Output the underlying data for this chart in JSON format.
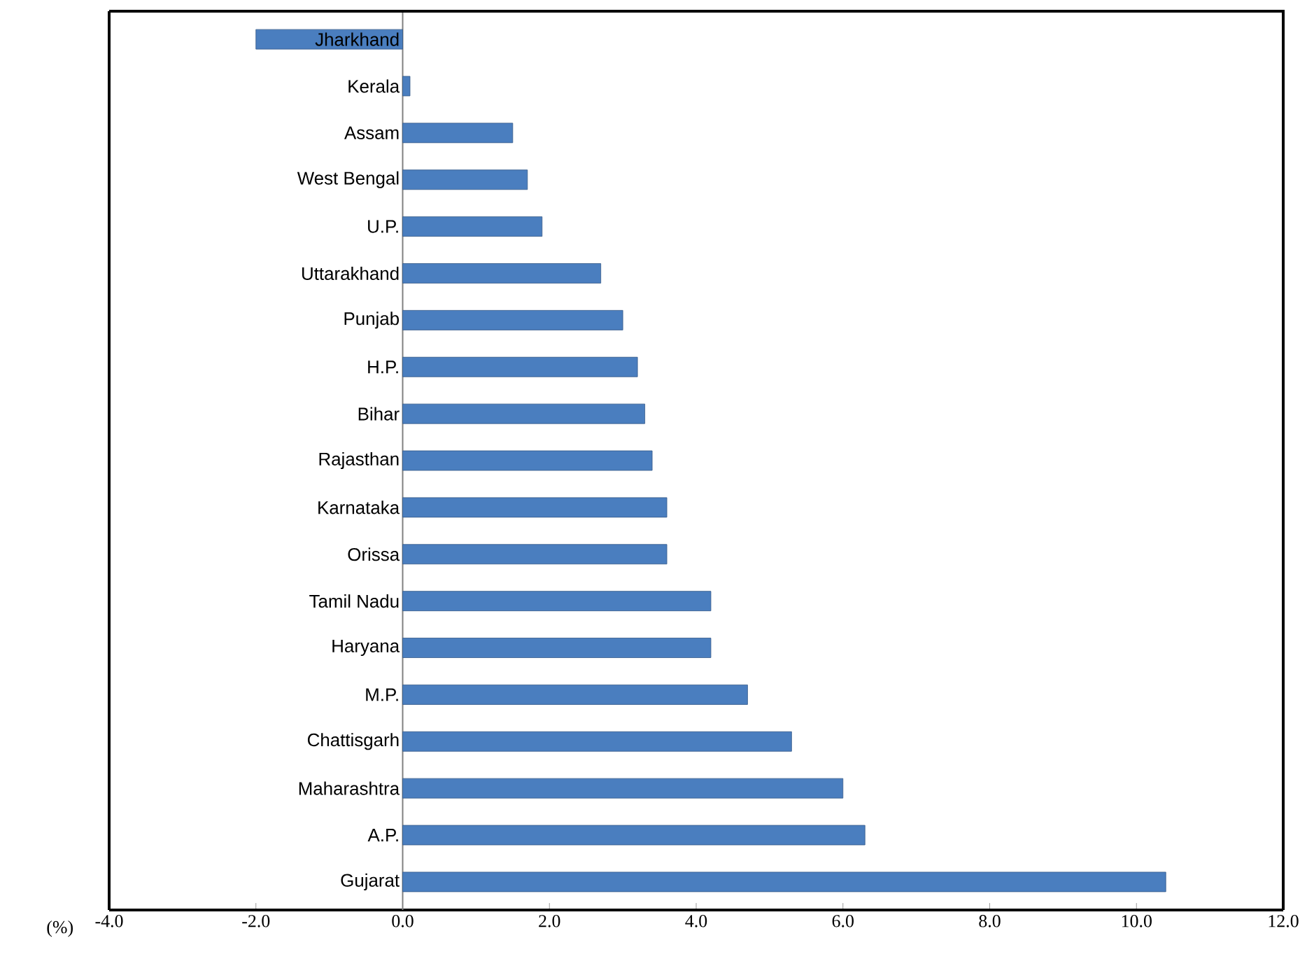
{
  "chart_data": {
    "type": "bar",
    "orientation": "horizontal",
    "xlabel": "(%)",
    "categories": [
      "Jharkhand",
      "Kerala",
      "Assam",
      "West Bengal",
      "U.P.",
      "Uttarakhand",
      "Punjab",
      "H.P.",
      "Bihar",
      "Rajasthan",
      "Karnataka",
      "Orissa",
      "Tamil Nadu",
      "Haryana",
      "M.P.",
      "Chattisgarh",
      "Maharashtra",
      "A.P.",
      "Gujarat"
    ],
    "values": [
      -2.0,
      0.1,
      1.5,
      1.7,
      1.9,
      2.7,
      3.0,
      3.2,
      3.3,
      3.4,
      3.6,
      3.6,
      4.2,
      4.2,
      4.7,
      5.3,
      6.0,
      6.3,
      10.4
    ],
    "color": "#4a7ebf",
    "xlim": [
      -4,
      12
    ],
    "xticks": [
      {
        "value": -4,
        "label": "-4.0"
      },
      {
        "value": -2,
        "label": "-2.0"
      },
      {
        "value": 0,
        "label": "0.0"
      },
      {
        "value": 2,
        "label": "2.0"
      },
      {
        "value": 4,
        "label": "4.0"
      },
      {
        "value": 6,
        "label": "6.0"
      },
      {
        "value": 8,
        "label": "8.0"
      },
      {
        "value": 10,
        "label": "10.0"
      },
      {
        "value": 12,
        "label": "12.0"
      }
    ]
  }
}
